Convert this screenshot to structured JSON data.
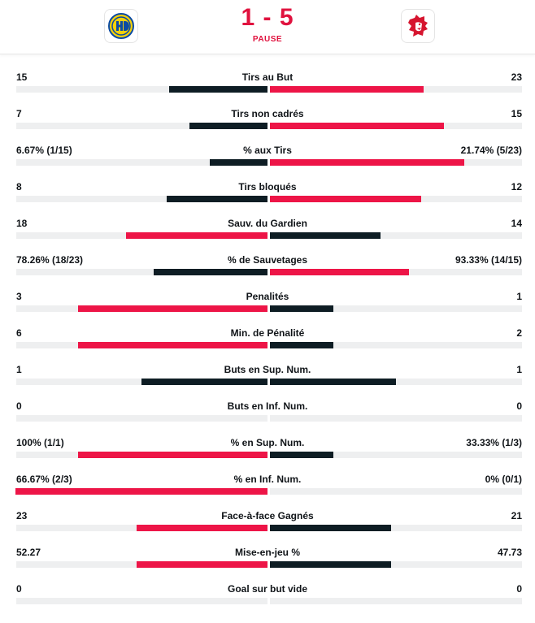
{
  "match": {
    "score": "1 - 5",
    "status": "PAUSE",
    "home_team": {
      "logo": "hc-davos-logo",
      "color": "#f5d10a",
      "color2": "#0b4ba3"
    },
    "away_team": {
      "logo": "lausanne-lion-logo",
      "color": "#d6152f"
    }
  },
  "colors": {
    "accent": "#e0123e",
    "win_bar": "#ed1547",
    "lose_bar": "#0e1d24",
    "track": "#eeeff0"
  },
  "stats": [
    {
      "label": "Tirs au But",
      "home": "15",
      "away": "23",
      "home_pct": 0.39,
      "away_pct": 0.61,
      "home_win": false
    },
    {
      "label": "Tirs non cadrés",
      "home": "7",
      "away": "15",
      "home_pct": 0.31,
      "away_pct": 0.69,
      "home_win": false
    },
    {
      "label": "% aux Tirs",
      "home": "6.67% (1/15)",
      "away": "21.74% (5/23)",
      "home_pct": 0.23,
      "away_pct": 0.77,
      "home_win": false
    },
    {
      "label": "Tirs bloqués",
      "home": "8",
      "away": "12",
      "home_pct": 0.4,
      "away_pct": 0.6,
      "home_win": false
    },
    {
      "label": "Sauv. du Gardien",
      "home": "18",
      "away": "14",
      "home_pct": 0.56,
      "away_pct": 0.44,
      "home_win": true
    },
    {
      "label": "% de Sauvetages",
      "home": "78.26% (18/23)",
      "away": "93.33% (14/15)",
      "home_pct": 0.45,
      "away_pct": 0.55,
      "home_win": false
    },
    {
      "label": "Penalités",
      "home": "3",
      "away": "1",
      "home_pct": 0.75,
      "away_pct": 0.25,
      "home_win": true
    },
    {
      "label": "Min. de Pénalité",
      "home": "6",
      "away": "2",
      "home_pct": 0.75,
      "away_pct": 0.25,
      "home_win": true
    },
    {
      "label": "Buts en Sup. Num.",
      "home": "1",
      "away": "1",
      "home_pct": 0.5,
      "away_pct": 0.5,
      "home_win": null
    },
    {
      "label": "Buts en Inf. Num.",
      "home": "0",
      "away": "0",
      "home_pct": 0,
      "away_pct": 0,
      "home_win": null
    },
    {
      "label": "% en Sup. Num.",
      "home": "100% (1/1)",
      "away": "33.33% (1/3)",
      "home_pct": 0.75,
      "away_pct": 0.25,
      "home_win": true
    },
    {
      "label": "% en Inf. Num.",
      "home": "66.67% (2/3)",
      "away": "0% (0/1)",
      "home_pct": 1.0,
      "away_pct": 0,
      "home_win": true
    },
    {
      "label": "Face-à-face Gagnés",
      "home": "23",
      "away": "21",
      "home_pct": 0.52,
      "away_pct": 0.48,
      "home_win": true
    },
    {
      "label": "Mise-en-jeu %",
      "home": "52.27",
      "away": "47.73",
      "home_pct": 0.52,
      "away_pct": 0.48,
      "home_win": true
    },
    {
      "label": "Goal sur but vide",
      "home": "0",
      "away": "0",
      "home_pct": 0,
      "away_pct": 0,
      "home_win": null
    }
  ]
}
